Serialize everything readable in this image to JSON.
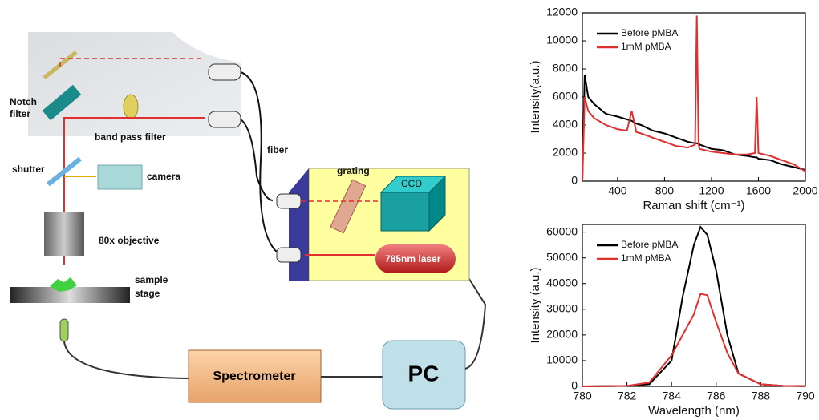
{
  "diagram": {
    "labels": {
      "notch_1": "Notch",
      "notch_2": "filter",
      "band_pass": "band pass filter",
      "shutter": "shutter",
      "camera": "camera",
      "objective": "80x objective",
      "sample_1": "sample",
      "sample_2": "stage",
      "fiber": "fiber",
      "grating": "grating",
      "ccd": "CCD",
      "laser": "785nm laser",
      "spectrometer": "Spectrometer",
      "pc": "PC"
    }
  },
  "chart_data": [
    {
      "type": "line",
      "xlabel": "Raman shift (cm⁻¹)",
      "ylabel": "Intensity(a.u.)",
      "x": [
        100,
        120,
        150,
        200,
        300,
        400,
        480,
        520,
        560,
        600,
        700,
        800,
        900,
        1000,
        1060,
        1075,
        1090,
        1100,
        1200,
        1300,
        1400,
        1500,
        1570,
        1585,
        1600,
        1700,
        1800,
        1900,
        2000
      ],
      "series": [
        {
          "name": "Before pMBA",
          "color": "#000000",
          "values": [
            0,
            7600,
            6000,
            5500,
            4800,
            4600,
            4400,
            4300,
            4100,
            4000,
            3600,
            3400,
            3100,
            2800,
            2700,
            2700,
            2650,
            2600,
            2300,
            2200,
            1900,
            1800,
            1700,
            1700,
            1600,
            1500,
            1200,
            1000,
            800
          ]
        },
        {
          "name": "1mM pMBA",
          "color": "#e03030",
          "values": [
            0,
            6000,
            5000,
            4500,
            4000,
            3700,
            3600,
            5000,
            3500,
            3400,
            3100,
            2800,
            2500,
            2400,
            2600,
            11800,
            2600,
            2300,
            2100,
            2000,
            1900,
            1900,
            2000,
            6000,
            2000,
            1800,
            1500,
            1200,
            700
          ]
        }
      ],
      "xlim": [
        100,
        2000
      ],
      "xticks": [
        400,
        800,
        1200,
        1600,
        2000
      ],
      "ylim": [
        0,
        12000
      ],
      "yticks": [
        0,
        2000,
        4000,
        6000,
        8000,
        10000,
        12000
      ],
      "legend": "upper-left"
    },
    {
      "type": "line",
      "xlabel": "Wavelength (nm)",
      "ylabel": "Intensity (a.u.)",
      "x": [
        780,
        782,
        783,
        784,
        784.5,
        785,
        785.3,
        785.6,
        786,
        786.5,
        787,
        788,
        789,
        790
      ],
      "series": [
        {
          "name": "Before pMBA",
          "color": "#000000",
          "values": [
            0,
            200,
            800,
            10000,
            35000,
            55000,
            62000,
            59000,
            45000,
            20000,
            5000,
            800,
            200,
            100
          ]
        },
        {
          "name": "1mM pMBA",
          "color": "#e03030",
          "values": [
            0,
            200,
            1500,
            12000,
            20000,
            28000,
            36000,
            35500,
            25000,
            13000,
            5000,
            800,
            200,
            100
          ]
        }
      ],
      "xlim": [
        780,
        790
      ],
      "xticks": [
        780,
        782,
        784,
        786,
        788,
        790
      ],
      "ylim": [
        0,
        63000
      ],
      "yticks": [
        0,
        10000,
        20000,
        30000,
        40000,
        50000,
        60000
      ],
      "legend": "upper-left"
    }
  ]
}
